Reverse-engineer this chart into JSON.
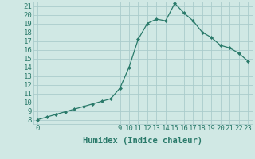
{
  "x": [
    0,
    1,
    2,
    3,
    4,
    5,
    6,
    7,
    8,
    9,
    10,
    11,
    12,
    13,
    14,
    15,
    16,
    17,
    18,
    19,
    20,
    21,
    22,
    23
  ],
  "y": [
    8.0,
    8.3,
    8.6,
    8.9,
    9.2,
    9.5,
    9.8,
    10.1,
    10.4,
    11.6,
    14.0,
    17.2,
    19.0,
    19.5,
    19.3,
    21.3,
    20.2,
    19.3,
    18.0,
    17.4,
    16.5,
    16.2,
    15.6,
    14.7
  ],
  "line_color": "#2a7a6a",
  "marker": "D",
  "marker_size": 2.0,
  "bg_color": "#d0e8e4",
  "grid_color": "#aacccc",
  "xlabel": "Humidex (Indice chaleur)",
  "ylim": [
    7.5,
    21.5
  ],
  "xlim": [
    -0.5,
    23.5
  ],
  "yticks": [
    8,
    9,
    10,
    11,
    12,
    13,
    14,
    15,
    16,
    17,
    18,
    19,
    20,
    21
  ],
  "xticks": [
    0,
    9,
    10,
    11,
    12,
    13,
    14,
    15,
    16,
    17,
    18,
    19,
    20,
    21,
    22,
    23
  ],
  "font_color": "#2a7a6a",
  "xlabel_fontsize": 7.5,
  "tick_fontsize": 6.5
}
